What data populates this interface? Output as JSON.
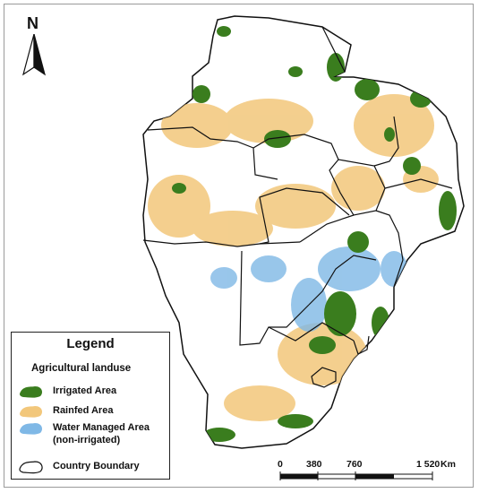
{
  "north_arrow": {
    "letter": "N",
    "icon": "north-arrow-icon"
  },
  "legend": {
    "title": "Legend",
    "subtitle": "Agricultural landuse",
    "items": [
      {
        "label": "Irrigated Area",
        "color": "#3a7d1e",
        "icon": "irrigated-swatch"
      },
      {
        "label": "Rainfed Area",
        "color": "#f2c77b",
        "icon": "rainfed-swatch"
      },
      {
        "label": "Water Managed Area",
        "label2": "(non-irrigated)",
        "color": "#7fb8e6",
        "icon": "water-managed-swatch"
      }
    ],
    "boundary_label": "Country Boundary"
  },
  "scale": {
    "ticks": [
      "0",
      "380",
      "760",
      "1 520"
    ],
    "unit": "Km"
  },
  "colors": {
    "irrigated": "#3a7d1e",
    "rainfed": "#f2c77b",
    "water_managed": "#7fb8e6",
    "boundary": "#111111"
  }
}
